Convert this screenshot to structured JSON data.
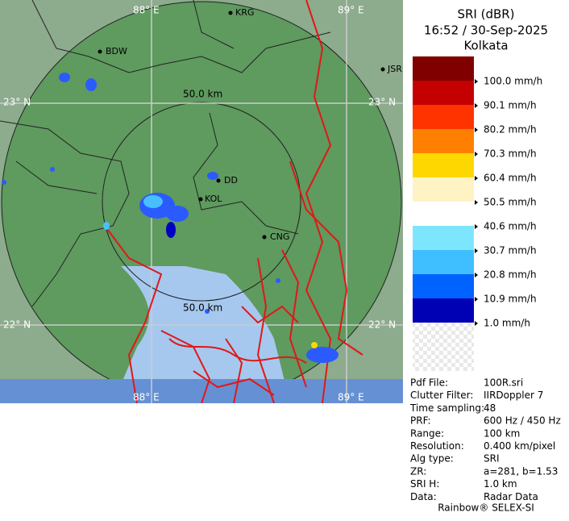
{
  "legend": {
    "title": "SRI (dBR)",
    "time": "16:52 / 30-Sep-2025",
    "site": "Kolkata",
    "levels": [
      {
        "label": "100.0 mm/h",
        "color": "#800000"
      },
      {
        "label": "90.1 mm/h",
        "color": "#c40000"
      },
      {
        "label": "80.2 mm/h",
        "color": "#ff3300"
      },
      {
        "label": "70.3 mm/h",
        "color": "#ff8000"
      },
      {
        "label": "60.4 mm/h",
        "color": "#ffd700"
      },
      {
        "label": "50.5 mm/h",
        "color": "#fff3c4"
      },
      {
        "label": "40.6 mm/h",
        "color": "#ffffff"
      },
      {
        "label": "30.7 mm/h",
        "color": "#7de6ff"
      },
      {
        "label": "20.8 mm/h",
        "color": "#3fbfff"
      },
      {
        "label": "10.9 mm/h",
        "color": "#0062ff"
      },
      {
        "label": "1.0 mm/h",
        "color": "#0000b4"
      }
    ]
  },
  "info": {
    "rows": [
      [
        "Pdf File:",
        "100R.sri"
      ],
      [
        "Clutter Filter:",
        "IIRDoppler 7"
      ],
      [
        "Time sampling:",
        "48"
      ],
      [
        "PRF:",
        "600 Hz / 450 Hz"
      ],
      [
        "Range:",
        "100 km"
      ],
      [
        "Resolution:",
        "0.400 km/pixel"
      ],
      [
        "Alg type:",
        "SRI"
      ],
      [
        "ZR:",
        "a=281, b=1.53"
      ],
      [
        "SRI H:",
        "1.0 km"
      ],
      [
        "Data:",
        "Radar Data"
      ]
    ],
    "footer": "Rainbow® SELEX-SI"
  },
  "map": {
    "grid_labels": [
      "88° E",
      "89° E",
      "23° N",
      "22° N"
    ],
    "range_label": "50.0 km",
    "places": [
      "KRG",
      "BDW",
      "JSR",
      "DD",
      "KOL",
      "CNG"
    ]
  }
}
